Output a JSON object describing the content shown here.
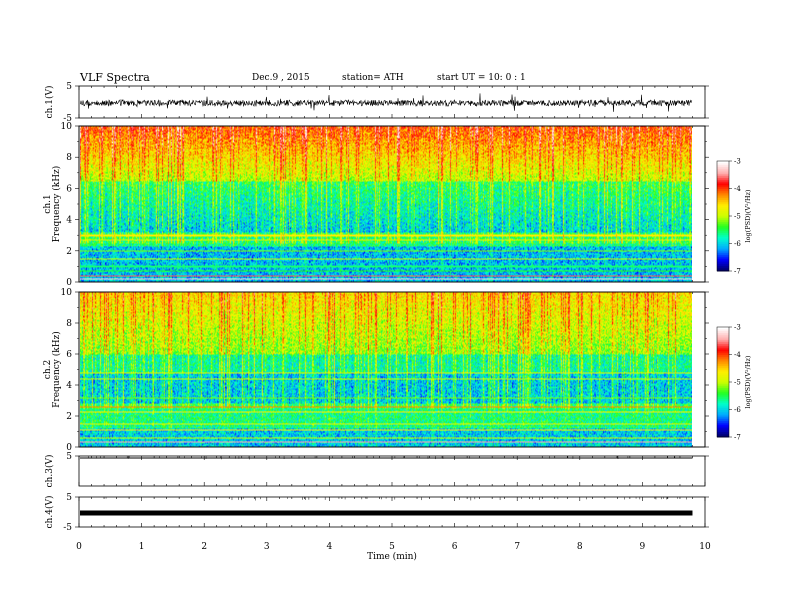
{
  "header": {
    "title": "VLF  Spectra",
    "date": "Dec.9  , 2015",
    "station": "station= ATH",
    "start": "start  UT  =   10: 0  : 1"
  },
  "chart_data": [
    {
      "type": "line",
      "panel": "ch1-waveform",
      "ylabel": "ch.1(V)",
      "ylim": [
        -5,
        5
      ],
      "yticks": [
        "5",
        "-5"
      ],
      "color": "#000000"
    },
    {
      "type": "heatmap",
      "panel": "ch1-spectrogram",
      "ylabel": "ch.1 Frequency (kHz)",
      "ylim": [
        0,
        10
      ],
      "yticks": [
        "0",
        "2",
        "4",
        "6",
        "8",
        "10"
      ],
      "colorbar": {
        "label": "log(PSD)(V²/Hz)",
        "range": [
          -7,
          -3
        ],
        "ticks": [
          "-3",
          "-4",
          "-5",
          "-6",
          "-7"
        ]
      }
    },
    {
      "type": "heatmap",
      "panel": "ch2-spectrogram",
      "ylabel": "ch.2 Frequency (kHz)",
      "ylim": [
        0,
        10
      ],
      "yticks": [
        "0",
        "2",
        "4",
        "6",
        "8",
        "10"
      ],
      "colorbar": {
        "label": "log(PSD)(V²/Hz)",
        "range": [
          -7,
          -3
        ],
        "ticks": [
          "-3",
          "-4",
          "-5",
          "-6",
          "-7"
        ]
      }
    },
    {
      "type": "line",
      "panel": "ch3-waveform",
      "ylabel": "ch.3(V)",
      "ylim": [
        -5,
        5
      ],
      "yticks": [
        "5"
      ],
      "color": "#000000"
    },
    {
      "type": "line",
      "panel": "ch4-waveform",
      "ylabel": "ch.4(V)",
      "ylim": [
        -5,
        5
      ],
      "yticks": [
        "5",
        "-5"
      ],
      "color": "#000000"
    }
  ],
  "xaxis": {
    "label": "Time  (min)",
    "xlim": [
      0,
      10
    ],
    "ticks": [
      "0",
      "1",
      "2",
      "3",
      "4",
      "5",
      "6",
      "7",
      "8",
      "9",
      "10"
    ],
    "data_end": 9.8
  },
  "colormap": [
    "#000066",
    "#0000ff",
    "#00aaff",
    "#00ffcc",
    "#22ff22",
    "#ccff00",
    "#ffee00",
    "#ff8800",
    "#ff0000",
    "#ffb0b0",
    "#ffffff"
  ]
}
